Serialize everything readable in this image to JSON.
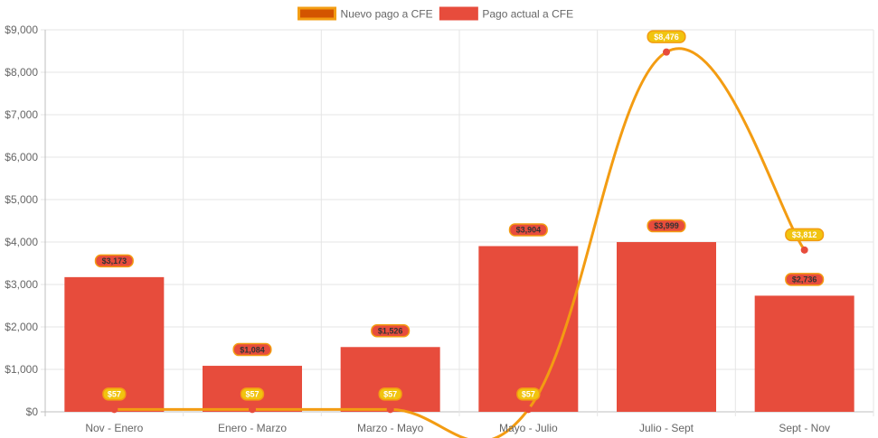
{
  "chart_data": {
    "type": "bar",
    "categories": [
      "Nov - Enero",
      "Enero - Marzo",
      "Marzo - Mayo",
      "Mayo - Julio",
      "Julio - Sept",
      "Sept - Nov"
    ],
    "series": [
      {
        "name": "Pago actual a CFE",
        "type": "bar",
        "values": [
          3173,
          1084,
          1526,
          3904,
          3999,
          2736
        ],
        "labels": [
          "$3,173",
          "$1,084",
          "$1,526",
          "$3,904",
          "$3,999",
          "$2,736"
        ],
        "color": "#e74c3c",
        "label_bg": "#e74c3c",
        "label_border": "#f39c12",
        "label_text": "#333333"
      },
      {
        "name": "Nuevo pago a CFE",
        "type": "line",
        "values": [
          57,
          57,
          57,
          57,
          8476,
          3812
        ],
        "labels": [
          "$57",
          "$57",
          "$57",
          "$57",
          "$8,476",
          "$3,812"
        ],
        "color": "#f39c12",
        "point_color": "#e74c3c",
        "label_bg": "#f1c40f",
        "label_border": "#f39c12",
        "label_text": "#ffffff",
        "legend_fill": "#d35400"
      }
    ],
    "ylim": [
      0,
      9000
    ],
    "ytick_step": 1000,
    "yticks": [
      "$0",
      "$1,000",
      "$2,000",
      "$3,000",
      "$4,000",
      "$5,000",
      "$6,000",
      "$7,000",
      "$8,000",
      "$9,000"
    ],
    "grid": true,
    "legend": "top-center",
    "colors": {
      "grid": "#e5e5e5",
      "axis": "#bfbfbf",
      "text": "#666666"
    }
  }
}
